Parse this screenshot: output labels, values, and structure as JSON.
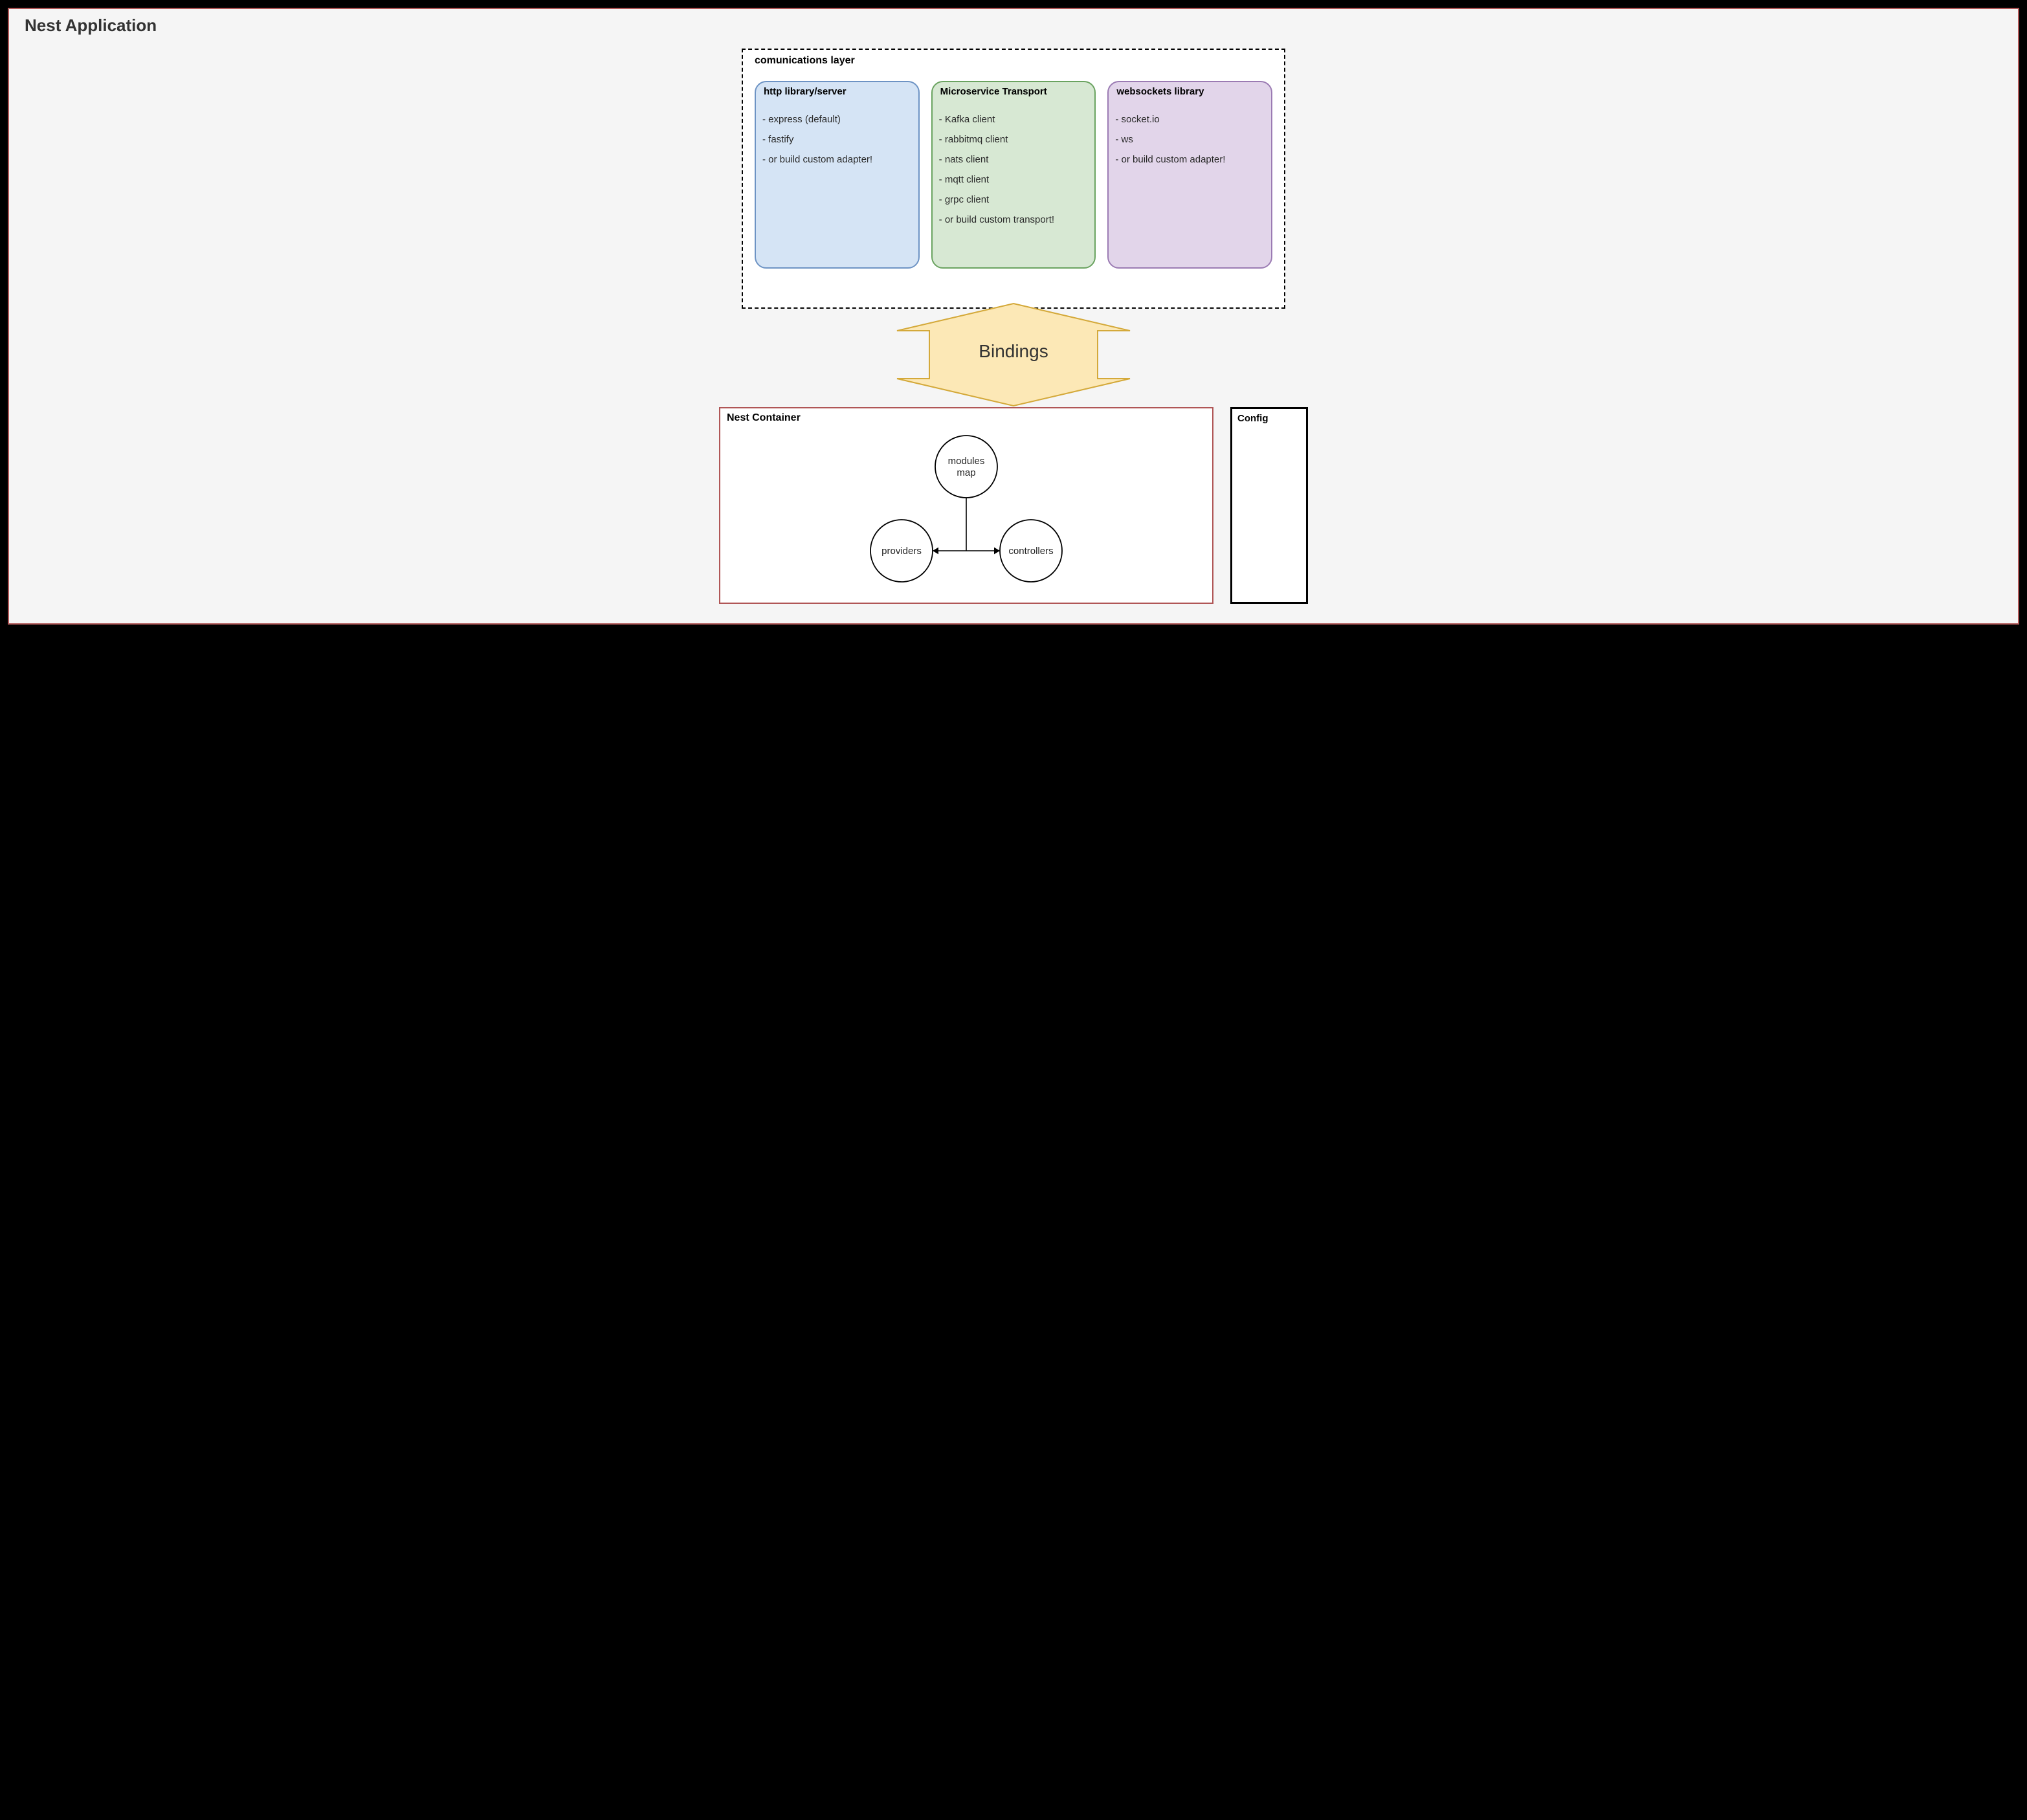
{
  "app": {
    "title": "Nest Application",
    "bg": "#f5f5f5",
    "border": "#b05656"
  },
  "comms": {
    "title": "comunications layer",
    "cards": [
      {
        "title": "http library/server",
        "bg": "#d5e4f5",
        "border": "#6d93c4",
        "items": [
          "- express (default)",
          "- fastify",
          "- or build custom adapter!"
        ]
      },
      {
        "title": "Microservice Transport",
        "bg": "#d7e8d3",
        "border": "#6aa360",
        "items": [
          "- Kafka client",
          "- rabbitmq client",
          "- nats client",
          "- mqtt client",
          "- grpc client",
          "- or build custom transport!"
        ]
      },
      {
        "title": "websockets library",
        "bg": "#e2d5ea",
        "border": "#9b7bb3",
        "items": [
          "- socket.io",
          "- ws",
          "- or build custom adapter!"
        ]
      }
    ]
  },
  "bindings": {
    "label": "Bindings",
    "fill": "#fce8b6",
    "stroke": "#d4a93a"
  },
  "container": {
    "title": "Nest Container",
    "border": "#b05656",
    "nodes": {
      "top": "modules\nmap",
      "left": "providers",
      "right": "controllers"
    },
    "circle_r": 48,
    "circle_stroke": "#000000",
    "circle_fill": "#ffffff",
    "line_stroke": "#000000"
  },
  "config": {
    "title": "Config"
  },
  "style": {
    "title_fontsize": 26,
    "card_title_fontsize": 15,
    "item_fontsize": 15,
    "bindings_fontsize": 28
  }
}
